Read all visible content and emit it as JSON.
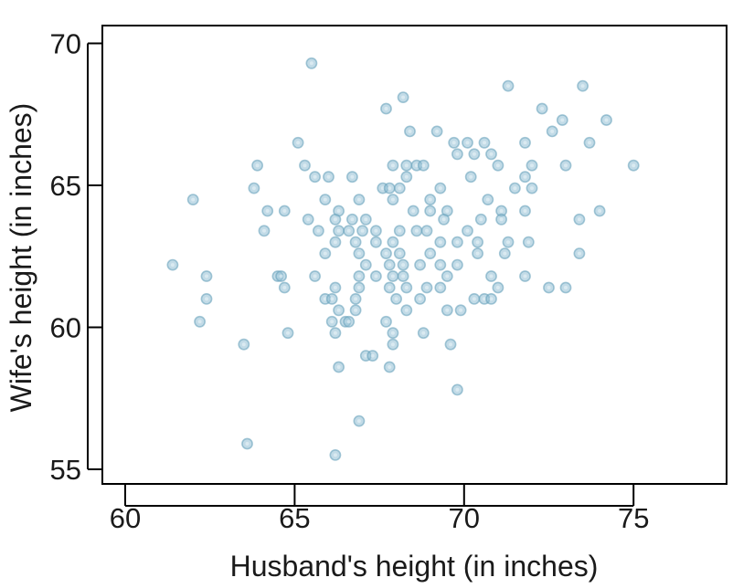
{
  "chart_data": {
    "type": "scatter",
    "title": "",
    "xlabel": "Husband's height (in inches)",
    "ylabel": "Wife's height (in inches)",
    "xlim": [
      59.5,
      77.5
    ],
    "ylim": [
      54.5,
      70.5
    ],
    "xticks": [
      60,
      65,
      70,
      75
    ],
    "yticks": [
      55,
      60,
      65,
      70
    ],
    "xtick_labels": [
      "60",
      "65",
      "70",
      "75"
    ],
    "ytick_labels": [
      "55",
      "60",
      "65",
      "70"
    ],
    "grid": false,
    "legend": "none",
    "colors": {
      "point_fill": "#8fbdd3",
      "point_edge": "#6aa3bd",
      "axis": "#000000"
    },
    "points": [
      [
        65.5,
        69.3
      ],
      [
        68.2,
        68.1
      ],
      [
        71.3,
        68.5
      ],
      [
        73.5,
        68.5
      ],
      [
        67.7,
        67.7
      ],
      [
        72.3,
        67.7
      ],
      [
        72.9,
        67.3
      ],
      [
        74.2,
        67.3
      ],
      [
        72.6,
        66.9
      ],
      [
        68.4,
        66.9
      ],
      [
        69.2,
        66.9
      ],
      [
        65.1,
        66.5
      ],
      [
        69.7,
        66.5
      ],
      [
        70.1,
        66.5
      ],
      [
        70.6,
        66.5
      ],
      [
        71.8,
        66.5
      ],
      [
        73.7,
        66.5
      ],
      [
        69.8,
        66.1
      ],
      [
        70.3,
        66.1
      ],
      [
        70.8,
        66.1
      ],
      [
        63.9,
        65.7
      ],
      [
        65.3,
        65.7
      ],
      [
        67.9,
        65.7
      ],
      [
        68.3,
        65.7
      ],
      [
        68.6,
        65.7
      ],
      [
        68.8,
        65.7
      ],
      [
        71.0,
        65.7
      ],
      [
        72.0,
        65.7
      ],
      [
        73.0,
        65.7
      ],
      [
        75.0,
        65.7
      ],
      [
        65.6,
        65.3
      ],
      [
        66.0,
        65.3
      ],
      [
        66.7,
        65.3
      ],
      [
        68.3,
        65.3
      ],
      [
        70.2,
        65.3
      ],
      [
        71.8,
        65.3
      ],
      [
        63.8,
        64.9
      ],
      [
        67.6,
        64.9
      ],
      [
        67.8,
        64.9
      ],
      [
        68.1,
        64.9
      ],
      [
        69.3,
        64.9
      ],
      [
        71.5,
        64.9
      ],
      [
        72.0,
        64.9
      ],
      [
        62.0,
        64.5
      ],
      [
        65.9,
        64.5
      ],
      [
        66.9,
        64.5
      ],
      [
        67.9,
        64.5
      ],
      [
        69.0,
        64.5
      ],
      [
        70.7,
        64.5
      ],
      [
        64.2,
        64.1
      ],
      [
        64.7,
        64.1
      ],
      [
        66.3,
        64.1
      ],
      [
        68.5,
        64.1
      ],
      [
        69.0,
        64.1
      ],
      [
        69.5,
        64.1
      ],
      [
        71.1,
        64.1
      ],
      [
        71.8,
        64.1
      ],
      [
        74.0,
        64.1
      ],
      [
        65.4,
        63.8
      ],
      [
        66.2,
        63.8
      ],
      [
        66.7,
        63.8
      ],
      [
        67.1,
        63.8
      ],
      [
        69.4,
        63.8
      ],
      [
        70.5,
        63.8
      ],
      [
        71.1,
        63.8
      ],
      [
        73.4,
        63.8
      ],
      [
        64.1,
        63.4
      ],
      [
        65.7,
        63.4
      ],
      [
        66.3,
        63.4
      ],
      [
        66.6,
        63.4
      ],
      [
        67.0,
        63.4
      ],
      [
        67.4,
        63.4
      ],
      [
        68.1,
        63.4
      ],
      [
        68.6,
        63.4
      ],
      [
        68.9,
        63.4
      ],
      [
        70.1,
        63.4
      ],
      [
        66.2,
        63.0
      ],
      [
        66.8,
        63.0
      ],
      [
        67.4,
        63.0
      ],
      [
        67.9,
        63.0
      ],
      [
        69.3,
        63.0
      ],
      [
        69.8,
        63.0
      ],
      [
        70.4,
        63.0
      ],
      [
        71.3,
        63.0
      ],
      [
        71.9,
        63.0
      ],
      [
        65.9,
        62.6
      ],
      [
        66.9,
        62.6
      ],
      [
        67.7,
        62.6
      ],
      [
        68.1,
        62.6
      ],
      [
        69.0,
        62.6
      ],
      [
        70.4,
        62.6
      ],
      [
        71.2,
        62.6
      ],
      [
        73.4,
        62.6
      ],
      [
        61.4,
        62.2
      ],
      [
        67.1,
        62.2
      ],
      [
        67.8,
        62.2
      ],
      [
        68.2,
        62.2
      ],
      [
        68.7,
        62.2
      ],
      [
        69.3,
        62.2
      ],
      [
        69.8,
        62.2
      ],
      [
        62.4,
        61.8
      ],
      [
        64.5,
        61.8
      ],
      [
        64.6,
        61.8
      ],
      [
        65.6,
        61.8
      ],
      [
        66.9,
        61.8
      ],
      [
        67.4,
        61.8
      ],
      [
        67.9,
        61.8
      ],
      [
        68.2,
        61.8
      ],
      [
        69.5,
        61.8
      ],
      [
        70.8,
        61.8
      ],
      [
        71.8,
        61.8
      ],
      [
        64.7,
        61.4
      ],
      [
        66.2,
        61.4
      ],
      [
        66.9,
        61.4
      ],
      [
        67.8,
        61.4
      ],
      [
        68.3,
        61.4
      ],
      [
        68.9,
        61.4
      ],
      [
        69.3,
        61.4
      ],
      [
        71.0,
        61.4
      ],
      [
        72.5,
        61.4
      ],
      [
        73.0,
        61.4
      ],
      [
        62.4,
        61.0
      ],
      [
        65.9,
        61.0
      ],
      [
        66.1,
        61.0
      ],
      [
        66.8,
        61.0
      ],
      [
        68.0,
        61.0
      ],
      [
        68.7,
        61.0
      ],
      [
        70.3,
        61.0
      ],
      [
        70.6,
        61.0
      ],
      [
        70.8,
        61.0
      ],
      [
        66.3,
        60.6
      ],
      [
        66.8,
        60.6
      ],
      [
        68.3,
        60.6
      ],
      [
        69.5,
        60.6
      ],
      [
        69.9,
        60.6
      ],
      [
        62.2,
        60.2
      ],
      [
        66.1,
        60.2
      ],
      [
        66.5,
        60.2
      ],
      [
        66.6,
        60.2
      ],
      [
        67.7,
        60.2
      ],
      [
        64.8,
        59.8
      ],
      [
        66.2,
        59.8
      ],
      [
        67.9,
        59.8
      ],
      [
        68.8,
        59.8
      ],
      [
        63.5,
        59.4
      ],
      [
        67.9,
        59.4
      ],
      [
        69.6,
        59.4
      ],
      [
        67.1,
        59.0
      ],
      [
        67.3,
        59.0
      ],
      [
        66.3,
        58.6
      ],
      [
        67.8,
        58.6
      ],
      [
        69.8,
        57.8
      ],
      [
        66.9,
        56.7
      ],
      [
        63.6,
        55.9
      ],
      [
        66.2,
        55.5
      ]
    ]
  }
}
